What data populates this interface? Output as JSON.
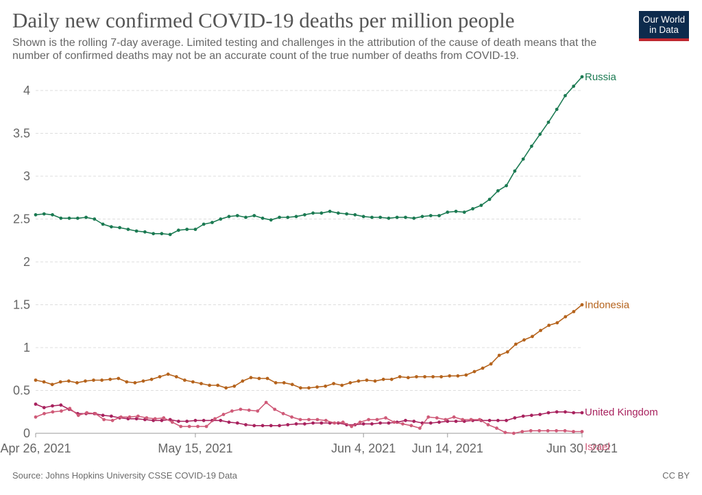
{
  "header": {
    "title": "Daily new confirmed COVID-19 deaths per million people",
    "subtitle": "Shown is the rolling 7-day average. Limited testing and challenges in the attribution of the cause of death means that the number of confirmed deaths may not be an accurate count of the true number of deaths from COVID-19."
  },
  "logo": {
    "line1": "Our World",
    "line2": "in Data",
    "bg": "#0d2b4d",
    "accent": "#c0282f"
  },
  "footer": {
    "source": "Source: Johns Hopkins University CSSE COVID-19 Data",
    "license": "CC BY"
  },
  "chart_data": {
    "type": "line",
    "title": "Daily new confirmed COVID-19 deaths per million people",
    "xlabel": "",
    "ylabel": "",
    "ylim": [
      0,
      4.3
    ],
    "yticks": [
      0,
      0.5,
      1,
      1.5,
      2,
      2.5,
      3,
      3.5,
      4
    ],
    "ytick_labels": [
      "0",
      "0.5",
      "1",
      "1.5",
      "2",
      "2.5",
      "3",
      "3.5",
      "4"
    ],
    "grid": true,
    "x_start": "2021-04-26",
    "x_end": "2021-06-30",
    "xticks": [
      {
        "date": "2021-04-26",
        "label": "Apr 26, 2021"
      },
      {
        "date": "2021-05-15",
        "label": "May 15, 2021"
      },
      {
        "date": "2021-06-04",
        "label": "Jun 4, 2021"
      },
      {
        "date": "2021-06-14",
        "label": "Jun 14, 2021"
      },
      {
        "date": "2021-06-30",
        "label": "Jun 30, 2021"
      }
    ],
    "series": [
      {
        "name": "Russia",
        "color": "#1b7a52",
        "values": [
          2.55,
          2.56,
          2.55,
          2.51,
          2.51,
          2.51,
          2.52,
          2.5,
          2.44,
          2.41,
          2.4,
          2.38,
          2.36,
          2.35,
          2.33,
          2.33,
          2.32,
          2.37,
          2.38,
          2.38,
          2.44,
          2.46,
          2.5,
          2.53,
          2.54,
          2.52,
          2.54,
          2.51,
          2.49,
          2.52,
          2.52,
          2.53,
          2.55,
          2.57,
          2.57,
          2.59,
          2.57,
          2.56,
          2.55,
          2.53,
          2.52,
          2.52,
          2.51,
          2.52,
          2.52,
          2.51,
          2.53,
          2.54,
          2.54,
          2.58,
          2.59,
          2.58,
          2.62,
          2.66,
          2.73,
          2.83,
          2.89,
          3.06,
          3.2,
          3.35,
          3.49,
          3.63,
          3.78,
          3.94,
          4.05,
          4.16
        ]
      },
      {
        "name": "Indonesia",
        "color": "#b5631c",
        "values": [
          0.62,
          0.6,
          0.57,
          0.6,
          0.61,
          0.59,
          0.61,
          0.62,
          0.62,
          0.63,
          0.64,
          0.6,
          0.59,
          0.61,
          0.63,
          0.66,
          0.69,
          0.66,
          0.62,
          0.6,
          0.58,
          0.56,
          0.56,
          0.53,
          0.55,
          0.61,
          0.65,
          0.64,
          0.64,
          0.59,
          0.59,
          0.57,
          0.53,
          0.53,
          0.54,
          0.55,
          0.58,
          0.56,
          0.59,
          0.61,
          0.62,
          0.61,
          0.63,
          0.63,
          0.66,
          0.65,
          0.66,
          0.66,
          0.66,
          0.66,
          0.67,
          0.67,
          0.68,
          0.72,
          0.76,
          0.81,
          0.91,
          0.95,
          1.04,
          1.09,
          1.13,
          1.2,
          1.26,
          1.29,
          1.36,
          1.42,
          1.5
        ]
      },
      {
        "name": "United Kingdom",
        "color": "#a8225e",
        "values": [
          0.34,
          0.3,
          0.32,
          0.33,
          0.28,
          0.23,
          0.23,
          0.23,
          0.21,
          0.2,
          0.18,
          0.17,
          0.17,
          0.16,
          0.15,
          0.15,
          0.16,
          0.14,
          0.14,
          0.15,
          0.15,
          0.15,
          0.15,
          0.13,
          0.12,
          0.1,
          0.09,
          0.09,
          0.09,
          0.09,
          0.1,
          0.11,
          0.11,
          0.12,
          0.12,
          0.12,
          0.12,
          0.1,
          0.1,
          0.11,
          0.11,
          0.12,
          0.12,
          0.13,
          0.15,
          0.14,
          0.12,
          0.12,
          0.13,
          0.14,
          0.14,
          0.14,
          0.15,
          0.15,
          0.15,
          0.15,
          0.15,
          0.18,
          0.2,
          0.21,
          0.22,
          0.24,
          0.25,
          0.25,
          0.24,
          0.24
        ]
      },
      {
        "name": "Israel",
        "color": "#cf5a78",
        "values": [
          0.19,
          0.23,
          0.25,
          0.26,
          0.29,
          0.21,
          0.24,
          0.23,
          0.16,
          0.15,
          0.19,
          0.19,
          0.2,
          0.18,
          0.17,
          0.18,
          0.13,
          0.08,
          0.08,
          0.08,
          0.08,
          0.17,
          0.22,
          0.26,
          0.28,
          0.27,
          0.26,
          0.36,
          0.28,
          0.23,
          0.19,
          0.16,
          0.16,
          0.16,
          0.15,
          0.12,
          0.13,
          0.08,
          0.13,
          0.16,
          0.16,
          0.18,
          0.13,
          0.11,
          0.09,
          0.06,
          0.19,
          0.18,
          0.16,
          0.19,
          0.16,
          0.16,
          0.16,
          0.1,
          0.06,
          0.01,
          0.0,
          0.02,
          0.03,
          0.03,
          0.03,
          0.03,
          0.03,
          0.02,
          0.02
        ]
      }
    ]
  }
}
